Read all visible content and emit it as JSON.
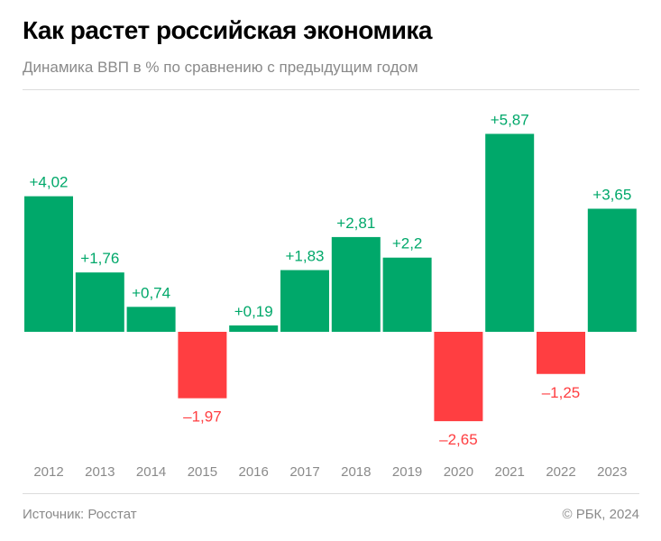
{
  "header": {
    "title": "Как растет российская экономика",
    "subtitle": "Динамика ВВП в % по сравнению с предыдущим годом"
  },
  "footer": {
    "source": "Источник: Росстат",
    "copyright": "© РБК, 2024"
  },
  "colors": {
    "positive": "#00a86a",
    "negative": "#ff3e41"
  },
  "chart_data": {
    "type": "bar",
    "categories": [
      "2012",
      "2013",
      "2014",
      "2015",
      "2016",
      "2017",
      "2018",
      "2019",
      "2020",
      "2021",
      "2022",
      "2023"
    ],
    "values": [
      4.02,
      1.76,
      0.74,
      -1.97,
      0.19,
      1.83,
      2.81,
      2.2,
      -2.65,
      5.87,
      -1.25,
      3.65
    ],
    "data_labels": [
      "+4,02",
      "+1,76",
      "+0,74",
      "–1,97",
      "+0,19",
      "+1,83",
      "+2,81",
      "+2,2",
      "–2,65",
      "+5,87",
      "–1,25",
      "+3,65"
    ],
    "title": "Как растет российская экономика",
    "ylabel": "",
    "xlabel": "",
    "grid": false
  }
}
